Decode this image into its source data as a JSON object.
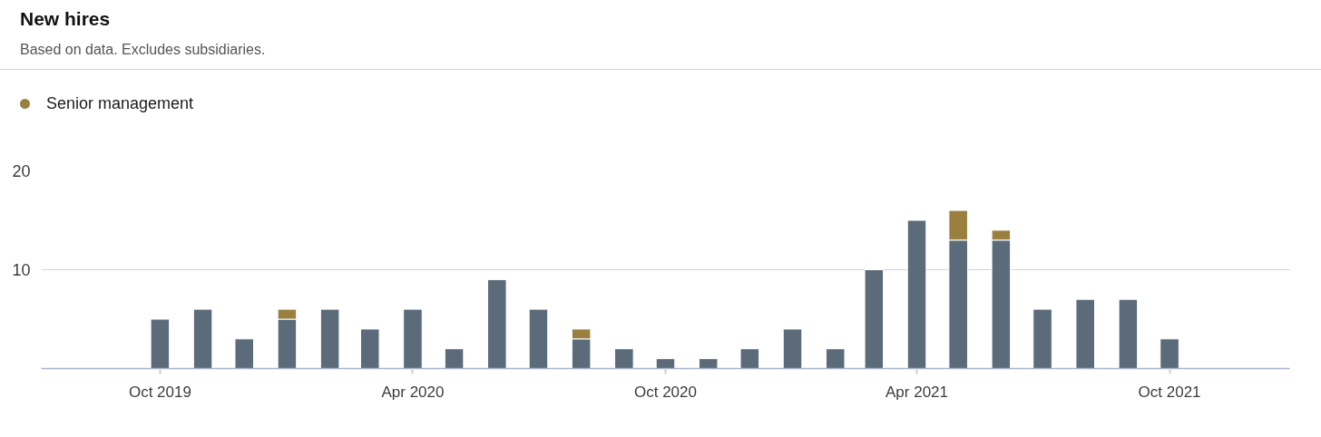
{
  "chart_data": {
    "type": "bar",
    "title": "New hires",
    "subtitle": "Based on data. Excludes subsidiaries.",
    "x": [
      "2019-10",
      "2019-11",
      "2019-12",
      "2020-01",
      "2020-02",
      "2020-03",
      "2020-04",
      "2020-05",
      "2020-06",
      "2020-07",
      "2020-08",
      "2020-09",
      "2020-10",
      "2020-11",
      "2020-12",
      "2021-01",
      "2021-02",
      "2021-03",
      "2021-04",
      "2021-05",
      "2021-06",
      "2021-07",
      "2021-08",
      "2021-09",
      "2021-10"
    ],
    "series": [
      {
        "color": "#5b6b7a",
        "values": [
          5,
          6,
          3,
          5,
          6,
          4,
          6,
          2,
          9,
          6,
          3,
          2,
          1,
          1,
          2,
          4,
          2,
          10,
          15,
          13,
          13,
          6,
          7,
          7,
          3
        ]
      },
      {
        "name": "Senior management",
        "color": "#9a7f3f",
        "values": [
          null,
          null,
          null,
          1,
          null,
          null,
          null,
          null,
          null,
          null,
          1,
          null,
          null,
          null,
          null,
          null,
          null,
          null,
          null,
          3,
          1,
          null,
          null,
          null,
          null
        ]
      }
    ],
    "stacked": true,
    "xlim": [
      "2019-07-07",
      "2021-12-27"
    ],
    "xticks": [
      {
        "value": "2019-10",
        "label": "Oct 2019"
      },
      {
        "value": "2020-04",
        "label": "Apr 2020"
      },
      {
        "value": "2020-10",
        "label": "Oct 2020"
      },
      {
        "value": "2021-04",
        "label": "Apr 2021"
      },
      {
        "value": "2021-10",
        "label": "Oct 2021"
      }
    ],
    "ylim": [
      0,
      20
    ],
    "yticks": [
      10,
      20
    ],
    "grid": "y",
    "legend": "top left"
  }
}
